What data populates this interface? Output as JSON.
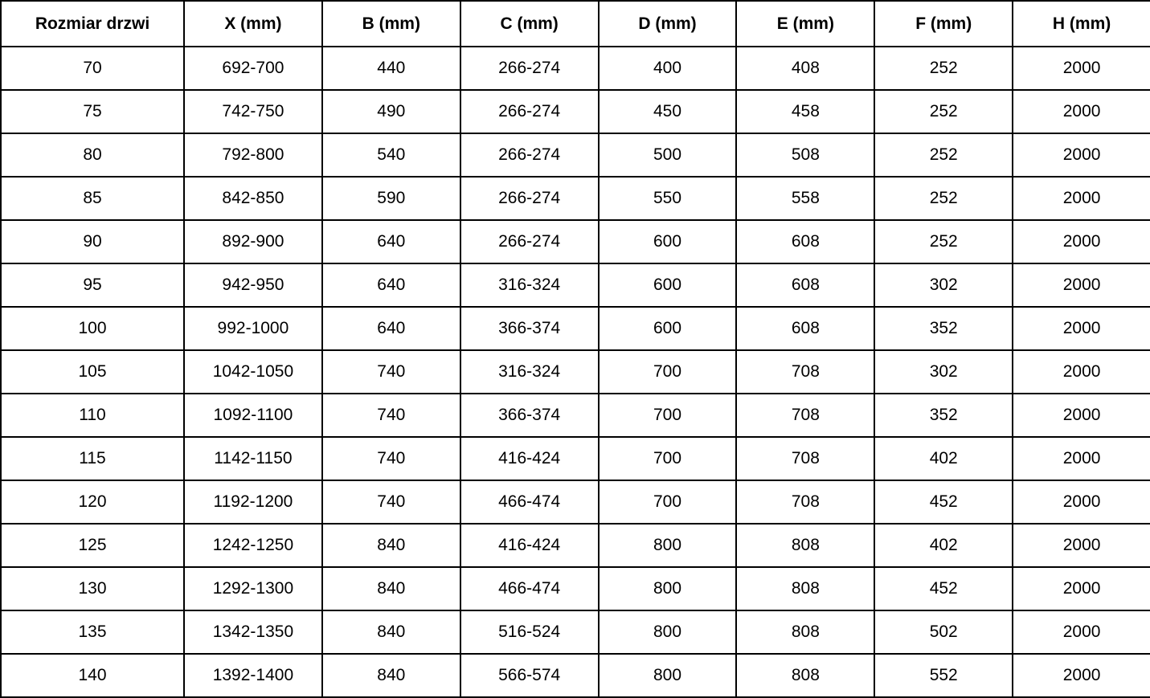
{
  "colors": {
    "border": "#000000",
    "background": "#ffffff",
    "text": "#000000"
  },
  "table": {
    "columns": [
      "Rozmiar drzwi",
      "X (mm)",
      "B (mm)",
      "C (mm)",
      "D (mm)",
      "E (mm)",
      "F (mm)",
      "H (mm)"
    ],
    "rows": [
      [
        "70",
        "692-700",
        "440",
        "266-274",
        "400",
        "408",
        "252",
        "2000"
      ],
      [
        "75",
        "742-750",
        "490",
        "266-274",
        "450",
        "458",
        "252",
        "2000"
      ],
      [
        "80",
        "792-800",
        "540",
        "266-274",
        "500",
        "508",
        "252",
        "2000"
      ],
      [
        "85",
        "842-850",
        "590",
        "266-274",
        "550",
        "558",
        "252",
        "2000"
      ],
      [
        "90",
        "892-900",
        "640",
        "266-274",
        "600",
        "608",
        "252",
        "2000"
      ],
      [
        "95",
        "942-950",
        "640",
        "316-324",
        "600",
        "608",
        "302",
        "2000"
      ],
      [
        "100",
        "992-1000",
        "640",
        "366-374",
        "600",
        "608",
        "352",
        "2000"
      ],
      [
        "105",
        "1042-1050",
        "740",
        "316-324",
        "700",
        "708",
        "302",
        "2000"
      ],
      [
        "110",
        "1092-1100",
        "740",
        "366-374",
        "700",
        "708",
        "352",
        "2000"
      ],
      [
        "115",
        "1142-1150",
        "740",
        "416-424",
        "700",
        "708",
        "402",
        "2000"
      ],
      [
        "120",
        "1192-1200",
        "740",
        "466-474",
        "700",
        "708",
        "452",
        "2000"
      ],
      [
        "125",
        "1242-1250",
        "840",
        "416-424",
        "800",
        "808",
        "402",
        "2000"
      ],
      [
        "130",
        "1292-1300",
        "840",
        "466-474",
        "800",
        "808",
        "452",
        "2000"
      ],
      [
        "135",
        "1342-1350",
        "840",
        "516-524",
        "800",
        "808",
        "502",
        "2000"
      ],
      [
        "140",
        "1392-1400",
        "840",
        "566-574",
        "800",
        "808",
        "552",
        "2000"
      ]
    ]
  }
}
